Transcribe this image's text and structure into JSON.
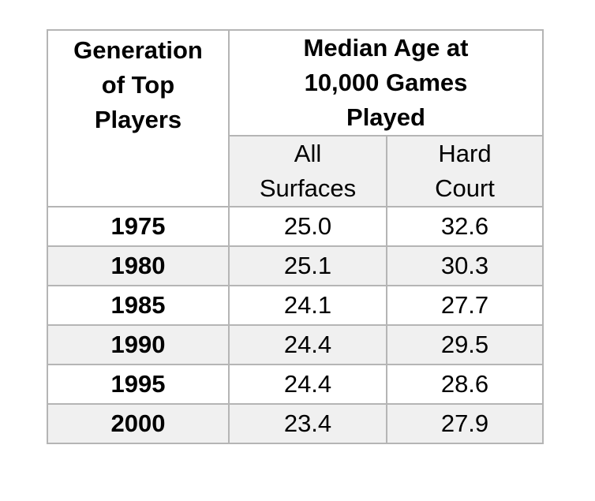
{
  "table": {
    "generation_header": "Generation\nof Top\nPlayers",
    "group_header": "Median Age at\n10,000 Games\nPlayed",
    "sub_headers": [
      "All\nSurfaces",
      "Hard\nCourt"
    ],
    "rows": [
      {
        "generation": "1975",
        "all_surfaces": "25.0",
        "hard_court": "32.6"
      },
      {
        "generation": "1980",
        "all_surfaces": "25.1",
        "hard_court": "30.3"
      },
      {
        "generation": "1985",
        "all_surfaces": "24.1",
        "hard_court": "27.7"
      },
      {
        "generation": "1990",
        "all_surfaces": "24.4",
        "hard_court": "29.5"
      },
      {
        "generation": "1995",
        "all_surfaces": "24.4",
        "hard_court": "28.6"
      },
      {
        "generation": "2000",
        "all_surfaces": "23.4",
        "hard_court": "27.9"
      }
    ]
  },
  "colors": {
    "page_bg": "#ffffff",
    "alt_row_bg": "#f0f0f0",
    "subheader_bg": "#f0f0f0",
    "border": "#b5b5b5",
    "text": "#000000"
  },
  "chart_data": {
    "type": "table",
    "title": "Median Age at 10,000 Games Played",
    "row_label_column": "Generation of Top Players",
    "categories": [
      "1975",
      "1980",
      "1985",
      "1990",
      "1995",
      "2000"
    ],
    "series": [
      {
        "name": "All Surfaces",
        "values": [
          25.0,
          25.1,
          24.1,
          24.4,
          24.4,
          23.4
        ]
      },
      {
        "name": "Hard Court",
        "values": [
          32.6,
          30.3,
          27.7,
          29.5,
          28.6,
          27.9
        ]
      }
    ]
  }
}
